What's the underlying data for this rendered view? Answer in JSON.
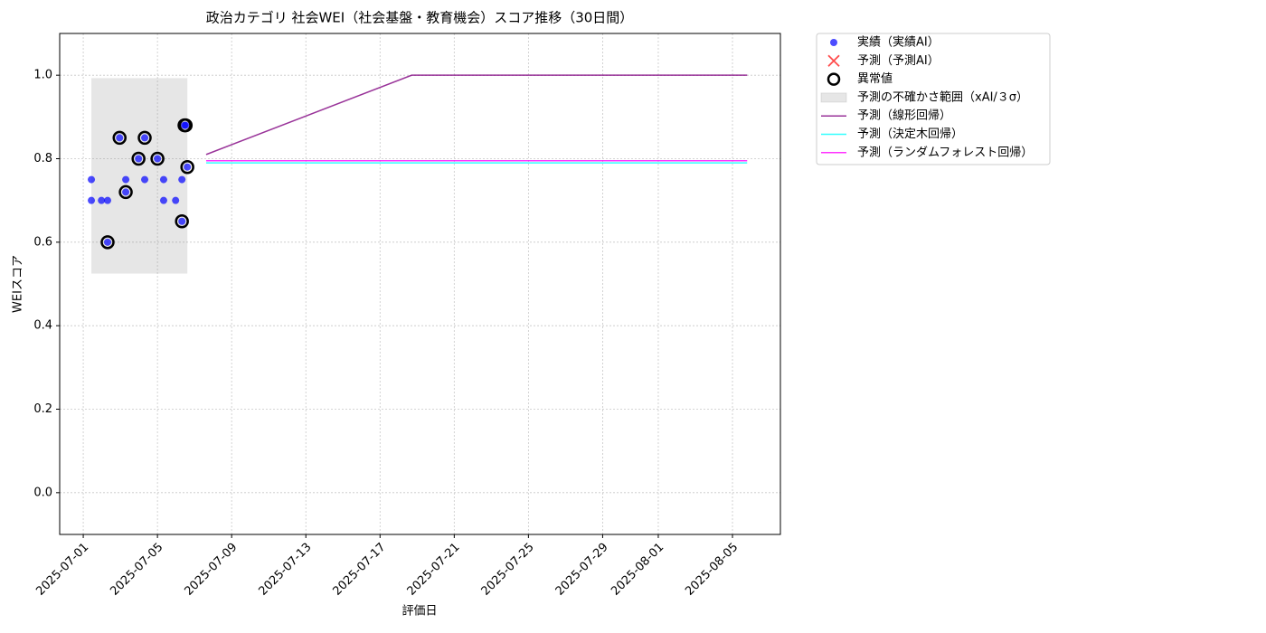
{
  "chart_data": {
    "type": "line",
    "title": "政治カテゴリ 社会WEI（社会基盤・教育機会）スコア推移（30日間）",
    "x_label": "評価日",
    "y_label": "WEIスコア",
    "xlim": [
      "2025-06-29T17:30",
      "2025-08-07T14:00"
    ],
    "ylim": [
      -0.1,
      1.1
    ],
    "xticks": [
      "2025-07-01",
      "2025-07-05",
      "2025-07-09",
      "2025-07-13",
      "2025-07-17",
      "2025-07-21",
      "2025-07-25",
      "2025-07-29",
      "2025-08-01",
      "2025-08-05"
    ],
    "yticks": [
      {
        "value": 0,
        "label": "0.0"
      },
      0.2,
      0.4,
      0.6,
      0.8,
      {
        "value": 1,
        "label": "1.0"
      }
    ],
    "grid": true,
    "legend": "outside-upper-right",
    "series": [
      {
        "name": "実績（実績AI）",
        "style": "scatter",
        "color": "#0000ff",
        "x": [
          "2025-07-01T10:30",
          "2025-07-01T10:30",
          "2025-07-01T23:30",
          "2025-07-02T07:30",
          "2025-07-02T07:30",
          "2025-07-02T23:00",
          "2025-07-03T07:00",
          "2025-07-03T07:00",
          "2025-07-03T23:30",
          "2025-07-04T07:30",
          "2025-07-04T07:30",
          "2025-07-05T00:00",
          "2025-07-05T08:00",
          "2025-07-05T08:00",
          "2025-07-05T23:30",
          "2025-07-06T07:40",
          "2025-07-06T07:40",
          "2025-07-06T11:00",
          "2025-07-06T12:30",
          "2025-07-06T14:40"
        ],
        "values": [
          0.75,
          0.7,
          0.7,
          0.7,
          0.6,
          0.85,
          0.75,
          0.72,
          0.8,
          0.75,
          0.85,
          0.8,
          0.75,
          0.7,
          0.7,
          0.75,
          0.65,
          0.88,
          0.88,
          0.78
        ]
      },
      {
        "name": "予測（予測AI）",
        "style": "x",
        "color": "#ff0000",
        "x": [],
        "values": []
      },
      {
        "name": "異常値",
        "style": "ring",
        "color": "#000000",
        "x": [
          "2025-07-02T07:30",
          "2025-07-02T23:00",
          "2025-07-03T07:00",
          "2025-07-03T23:30",
          "2025-07-04T07:30",
          "2025-07-05T00:00",
          "2025-07-06T07:40",
          "2025-07-06T11:00",
          "2025-07-06T12:30",
          "2025-07-06T14:40"
        ],
        "values": [
          0.6,
          0.85,
          0.72,
          0.8,
          0.85,
          0.8,
          0.65,
          0.88,
          0.88,
          0.78
        ]
      },
      {
        "name": "予測の不確かさ範囲（xAI/３σ）",
        "style": "band",
        "color": "#808080",
        "x": [
          "2025-07-01T10:30",
          "2025-07-06T14:40"
        ],
        "lower": [
          0.525,
          0.525
        ],
        "upper": [
          0.993,
          0.993
        ]
      },
      {
        "name": "予測（線形回帰）",
        "style": "line",
        "color": "#800080",
        "x": [
          "2025-07-07T15:00",
          "2025-07-18T17:00",
          "2025-08-05T19:00"
        ],
        "values": [
          0.81,
          1.0,
          1.0
        ]
      },
      {
        "name": "予測（決定木回帰）",
        "style": "line",
        "color": "#00ffff",
        "x": [
          "2025-07-07T15:00",
          "2025-08-05T19:00"
        ],
        "values": [
          0.79,
          0.79
        ]
      },
      {
        "name": "予測（ランダムフォレスト回帰）",
        "style": "line",
        "color": "#ff00ff",
        "x": [
          "2025-07-07T15:00",
          "2025-08-05T19:00"
        ],
        "values": [
          0.795,
          0.795
        ]
      }
    ]
  }
}
